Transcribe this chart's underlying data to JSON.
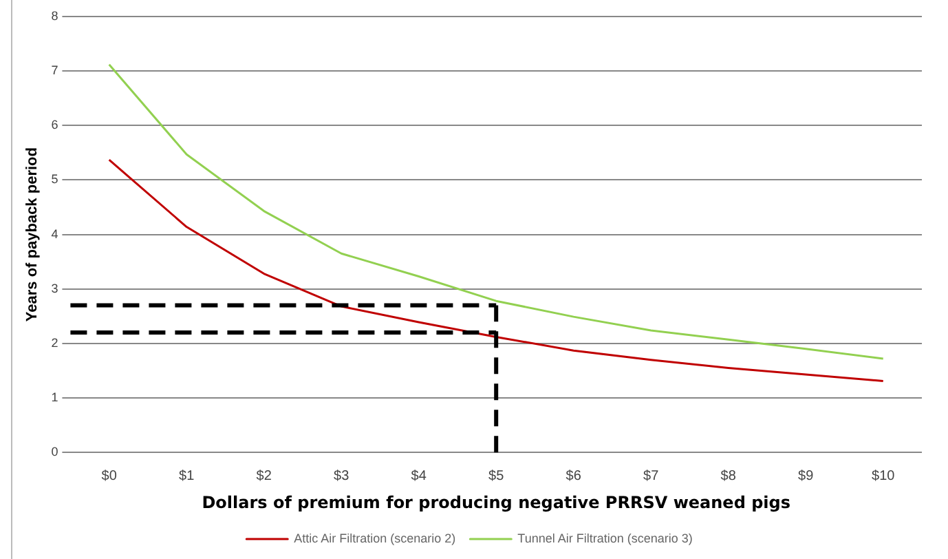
{
  "chart_data": {
    "type": "line",
    "xlabel": "Dollars of premium for producing negative PRRSV weaned pigs",
    "ylabel": "Years of payback period",
    "categories": [
      "$0",
      "$1",
      "$2",
      "$3",
      "$4",
      "$5",
      "$6",
      "$7",
      "$8",
      "$9",
      "$10"
    ],
    "series": [
      {
        "name": "Attic Air Filtration (scenario 2)",
        "color": "#c00000",
        "values": [
          5.37,
          4.14,
          3.28,
          2.68,
          2.39,
          2.12,
          1.87,
          1.7,
          1.55,
          1.43,
          1.31
        ]
      },
      {
        "name": "Tunnel Air Filtration (scenario 3)",
        "color": "#92d050",
        "values": [
          7.12,
          5.47,
          4.43,
          3.65,
          3.23,
          2.78,
          2.49,
          2.24,
          2.07,
          1.9,
          1.72
        ]
      }
    ],
    "ylim": [
      0,
      8
    ],
    "yticks": [
      0,
      1,
      2,
      3,
      4,
      5,
      6,
      7,
      8
    ],
    "grid": "y",
    "legend": "bottom",
    "marker": "none",
    "line_style": "solid",
    "ref_lines": [
      {
        "axis": "y",
        "value": 2.7,
        "color": "#000000",
        "line_style": "dashed"
      },
      {
        "axis": "y",
        "value": 2.2,
        "color": "#000000",
        "line_style": "dashed"
      },
      {
        "axis": "x",
        "value": "$5",
        "color": "#000000",
        "line_style": "dashed"
      }
    ]
  }
}
